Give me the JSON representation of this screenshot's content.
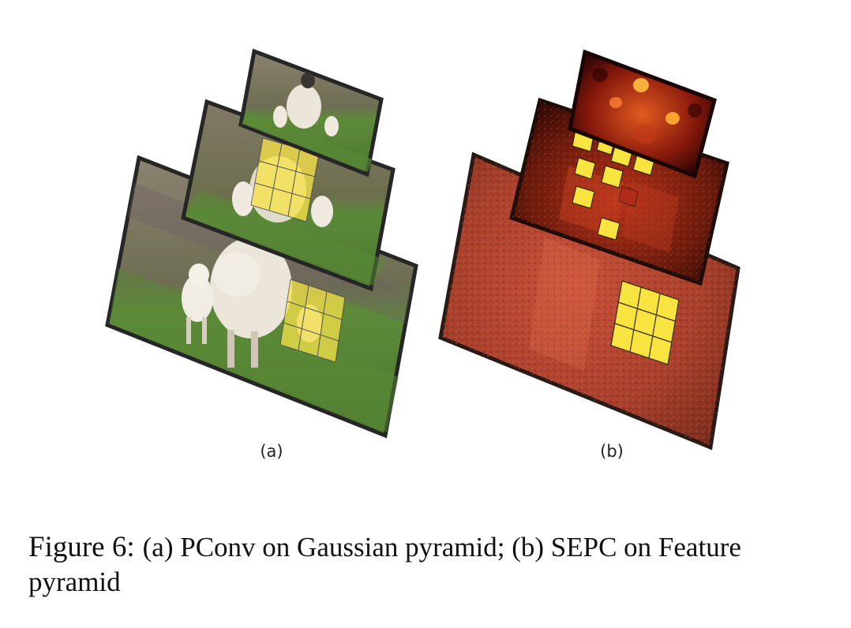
{
  "figure": {
    "label_a": "(a)",
    "label_b": "(b)",
    "caption_number": "Figure 6:",
    "caption_text": "(a) PConv on Gaussian pyramid; (b) SEPC on Feature pyramid"
  },
  "colors": {
    "grass": "#5f8a3c",
    "grass_dark": "#3f6a2a",
    "background_blur": "#7b7564",
    "sheep_wool": "#e8e2d6",
    "heatmap_dark": "#3a0606",
    "heatmap_mid": "#a0301a",
    "heatmap_hot": "#ffb030",
    "kernel_yellow": "#f7e34a",
    "frame_border": "#2a2a2a"
  },
  "panels": [
    {
      "name": "gaussian-pyramid",
      "levels": 3
    },
    {
      "name": "feature-pyramid",
      "levels": 3
    }
  ]
}
